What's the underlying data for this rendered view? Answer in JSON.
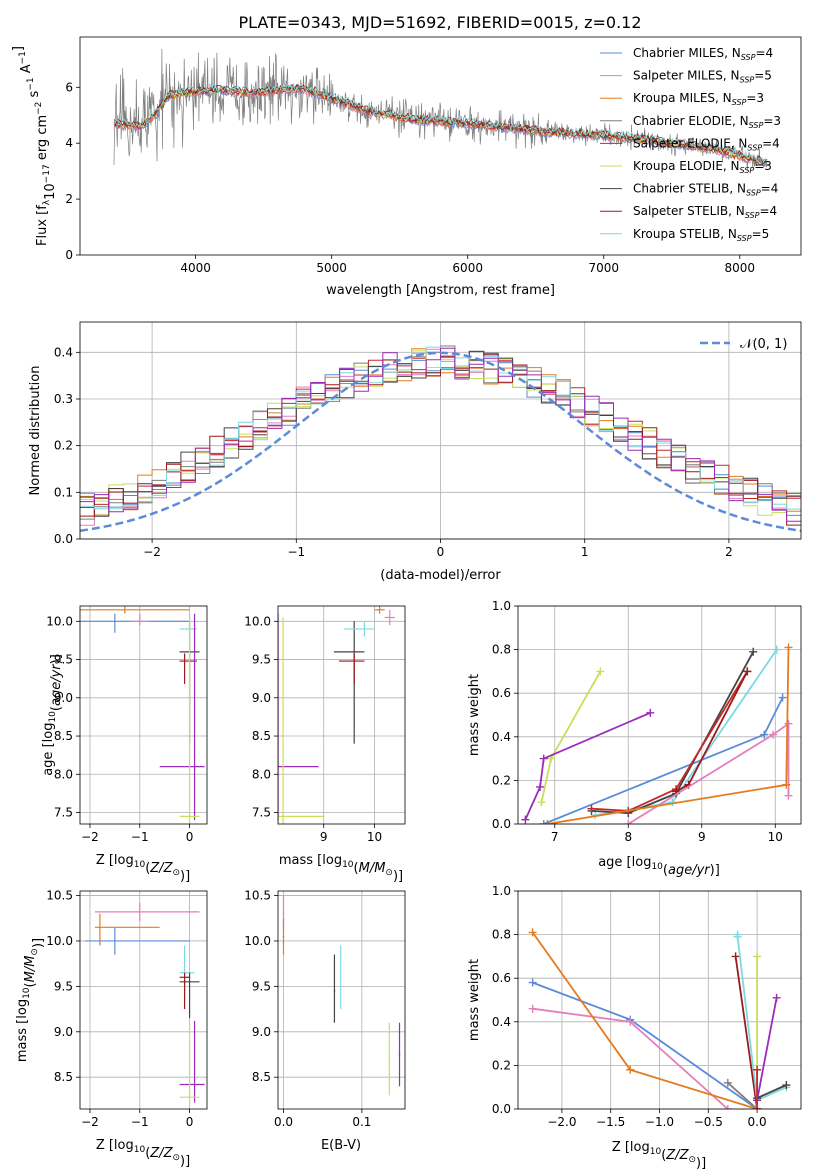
{
  "figure_title": "PLATE=0343, MJD=51692, FIBERID=0015, z=0.12",
  "series_colors": {
    "Chabrier MILES": "#5b8bd9",
    "Salpeter MILES": "#e37fbd",
    "Kroupa MILES": "#e47b1e",
    "Chabrier ELODIE": "#7f7f7f",
    "Salpeter ELODIE": "#c62828",
    "Kroupa ELODIE": "#c5e05a",
    "Chabrier STELIB": "#444444",
    "Salpeter STELIB": "#9b1b1b",
    "Kroupa STELIB": "#7dd9e0",
    "extra": "#9b2bb8"
  },
  "chart_data": [
    {
      "id": "spectrum",
      "type": "line",
      "xlabel": "wavelength [Angstrom, rest frame]",
      "ylabel": "Flux [f_λ10^-17 erg cm^-2 s^-1 A^-1]",
      "xlim": [
        3150,
        8450
      ],
      "ylim": [
        0,
        7.8
      ],
      "xticks": [
        "4000",
        "5000",
        "6000",
        "7000",
        "8000"
      ],
      "yticks": [
        "0",
        "2",
        "4",
        "6"
      ],
      "grid": false,
      "legend_position": "upper-right",
      "legend": [
        {
          "name": "Chabrier MILES",
          "nssp": "4"
        },
        {
          "name": "Salpeter MILES",
          "nssp": "5"
        },
        {
          "name": "Kroupa MILES",
          "nssp": "3"
        },
        {
          "name": "Chabrier ELODIE",
          "nssp": "3"
        },
        {
          "name": "Salpeter ELODIE",
          "nssp": "4"
        },
        {
          "name": "Kroupa ELODIE",
          "nssp": "3"
        },
        {
          "name": "Chabrier STELIB",
          "nssp": "4"
        },
        {
          "name": "Salpeter STELIB",
          "nssp": "4"
        },
        {
          "name": "Kroupa STELIB",
          "nssp": "5"
        }
      ],
      "continuum": {
        "x": [
          3400,
          3600,
          3700,
          3800,
          3900,
          4000,
          4200,
          4400,
          4600,
          4800,
          5000,
          5300,
          5600,
          6000,
          6300,
          6600,
          6900,
          7200,
          7500,
          7800,
          8000,
          8200
        ],
        "y": [
          4.7,
          4.6,
          5.0,
          5.7,
          5.8,
          5.85,
          5.9,
          5.8,
          5.9,
          5.95,
          5.6,
          5.1,
          4.85,
          4.7,
          4.55,
          4.4,
          4.3,
          4.2,
          4.0,
          3.8,
          3.55,
          3.3
        ]
      }
    },
    {
      "id": "residuals",
      "type": "histogram",
      "xlabel": "(data-model)/error",
      "ylabel": "Normed distribution",
      "xlim": [
        -2.5,
        2.5
      ],
      "ylim": [
        0,
        0.465
      ],
      "xticks": [
        "−2",
        "−1",
        "0",
        "1",
        "2"
      ],
      "yticks": [
        "0.0",
        "0.1",
        "0.2",
        "0.3",
        "0.4"
      ],
      "grid": true,
      "legend_position": "upper-right",
      "legend": [
        {
          "name": "𝒩(0, 1)"
        }
      ],
      "bin_width": 0.1,
      "reference_curve": "normal(0,1)"
    },
    {
      "id": "age_vs_Z",
      "type": "errorbar",
      "xlabel": "Z [log10(Z/Z☉)]",
      "ylabel": "age [log10(age/yr)]",
      "xlim": [
        -2.2,
        0.35
      ],
      "ylim": [
        7.35,
        10.2
      ],
      "xticks": [
        "−2",
        "−1",
        "0"
      ],
      "yticks": [
        "7.5",
        "8.0",
        "8.5",
        "9.0",
        "9.5",
        "10.0"
      ],
      "grid": true
    },
    {
      "id": "age_vs_mass",
      "type": "errorbar",
      "xlabel": "mass [log10(M/M☉)]",
      "ylabel": "",
      "xlim": [
        8.1,
        10.6
      ],
      "ylim": [
        7.35,
        10.2
      ],
      "xticks": [
        "9",
        "10"
      ],
      "yticks": [
        "7.5",
        "8.0",
        "8.5",
        "9.0",
        "9.5",
        "10.0"
      ],
      "grid": true
    },
    {
      "id": "weight_vs_age",
      "type": "line",
      "xlabel": "age [log10(age/yr)]",
      "ylabel": "mass weight",
      "xlim": [
        6.5,
        10.35
      ],
      "ylim": [
        0,
        1.0
      ],
      "xticks": [
        "7",
        "8",
        "9",
        "10"
      ],
      "yticks": [
        "0.0",
        "0.2",
        "0.4",
        "0.6",
        "0.8",
        "1.0"
      ],
      "grid": true,
      "series": [
        {
          "color": "#c5e05a",
          "x": [
            6.82,
            6.95,
            7.62
          ],
          "y": [
            0.1,
            0.3,
            0.7
          ]
        },
        {
          "color": "#9b2bb8",
          "x": [
            6.6,
            6.8,
            6.85,
            8.3
          ],
          "y": [
            0.02,
            0.17,
            0.3,
            0.51
          ]
        },
        {
          "color": "#5b8bd9",
          "x": [
            6.85,
            9.85,
            10.1
          ],
          "y": [
            0.0,
            0.41,
            0.58
          ]
        },
        {
          "color": "#7dd9e0",
          "x": [
            7.55,
            8.6,
            10.02
          ],
          "y": [
            0.04,
            0.1,
            0.8
          ]
        },
        {
          "color": "#444444",
          "x": [
            7.5,
            8.0,
            8.65,
            9.7
          ],
          "y": [
            0.06,
            0.05,
            0.14,
            0.79
          ]
        },
        {
          "color": "#c62828",
          "x": [
            7.5,
            8.0,
            8.65,
            9.62
          ],
          "y": [
            0.07,
            0.06,
            0.16,
            0.7
          ]
        },
        {
          "color": "#9b1b1b",
          "x": [
            8.65,
            8.82,
            9.62
          ],
          "y": [
            0.15,
            0.18,
            0.7
          ]
        },
        {
          "color": "#e37fbd",
          "x": [
            8.0,
            9.97,
            10.18,
            10.18
          ],
          "y": [
            0.0,
            0.41,
            0.46,
            0.13
          ]
        },
        {
          "color": "#e47b1e",
          "x": [
            6.9,
            10.15,
            10.18
          ],
          "y": [
            0.0,
            0.18,
            0.81
          ]
        }
      ]
    },
    {
      "id": "mass_vs_Z",
      "type": "errorbar",
      "xlabel": "Z [log10(Z/Z☉)]",
      "ylabel": "mass [log10(M/M☉)]",
      "xlim": [
        -2.2,
        0.35
      ],
      "ylim": [
        8.15,
        10.55
      ],
      "xticks": [
        "−2",
        "−1",
        "0"
      ],
      "yticks": [
        "8.5",
        "9.0",
        "9.5",
        "10.0",
        "10.5"
      ],
      "grid": true
    },
    {
      "id": "mass_vs_ebv",
      "type": "errorbar",
      "xlabel": "E(B-V)",
      "ylabel": "",
      "xlim": [
        -0.007,
        0.155
      ],
      "ylim": [
        8.15,
        10.55
      ],
      "xticks": [
        "0.0",
        "0.1"
      ],
      "yticks": [
        "8.5",
        "9.0",
        "9.5",
        "10.0",
        "10.5"
      ],
      "grid": true
    },
    {
      "id": "weight_vs_Z",
      "type": "line",
      "xlabel": "Z [log10(Z/Z☉)]",
      "ylabel": "mass weight",
      "xlim": [
        -2.45,
        0.45
      ],
      "ylim": [
        0,
        1.0
      ],
      "xticks": [
        "−2.0",
        "−1.5",
        "−1.0",
        "−0.5",
        "0.0"
      ],
      "yticks": [
        "0.0",
        "0.2",
        "0.4",
        "0.6",
        "0.8",
        "1.0"
      ],
      "grid": true,
      "series": [
        {
          "color": "#5b8bd9",
          "x": [
            -2.3,
            -1.3,
            0.0
          ],
          "y": [
            0.58,
            0.41,
            0.0
          ]
        },
        {
          "color": "#e37fbd",
          "x": [
            -2.3,
            -1.3,
            -0.3
          ],
          "y": [
            0.46,
            0.4,
            0.0
          ]
        },
        {
          "color": "#e47b1e",
          "x": [
            -2.3,
            -1.3,
            0.0
          ],
          "y": [
            0.81,
            0.18,
            0.0
          ]
        },
        {
          "color": "#7f7f7f",
          "x": [
            -0.3,
            0.0
          ],
          "y": [
            0.12,
            0.0
          ]
        },
        {
          "color": "#9b1b1b",
          "x": [
            -0.22,
            0.0
          ],
          "y": [
            0.7,
            0.0
          ]
        },
        {
          "color": "#c5e05a",
          "x": [
            0.0,
            0.0
          ],
          "y": [
            0.7,
            0.0
          ]
        },
        {
          "color": "#7dd9e0",
          "x": [
            -0.2,
            -0.2,
            0.0,
            0.3
          ],
          "y": [
            0.8,
            0.79,
            0.04,
            0.1
          ]
        },
        {
          "color": "#9b2bb8",
          "x": [
            0.0,
            0.2
          ],
          "y": [
            0.04,
            0.51
          ]
        },
        {
          "color": "#444444",
          "x": [
            0.0,
            0.3
          ],
          "y": [
            0.05,
            0.11
          ]
        },
        {
          "color": "#c62828",
          "x": [
            0.0,
            0.0
          ],
          "y": [
            0.18,
            0.0
          ]
        }
      ]
    }
  ]
}
